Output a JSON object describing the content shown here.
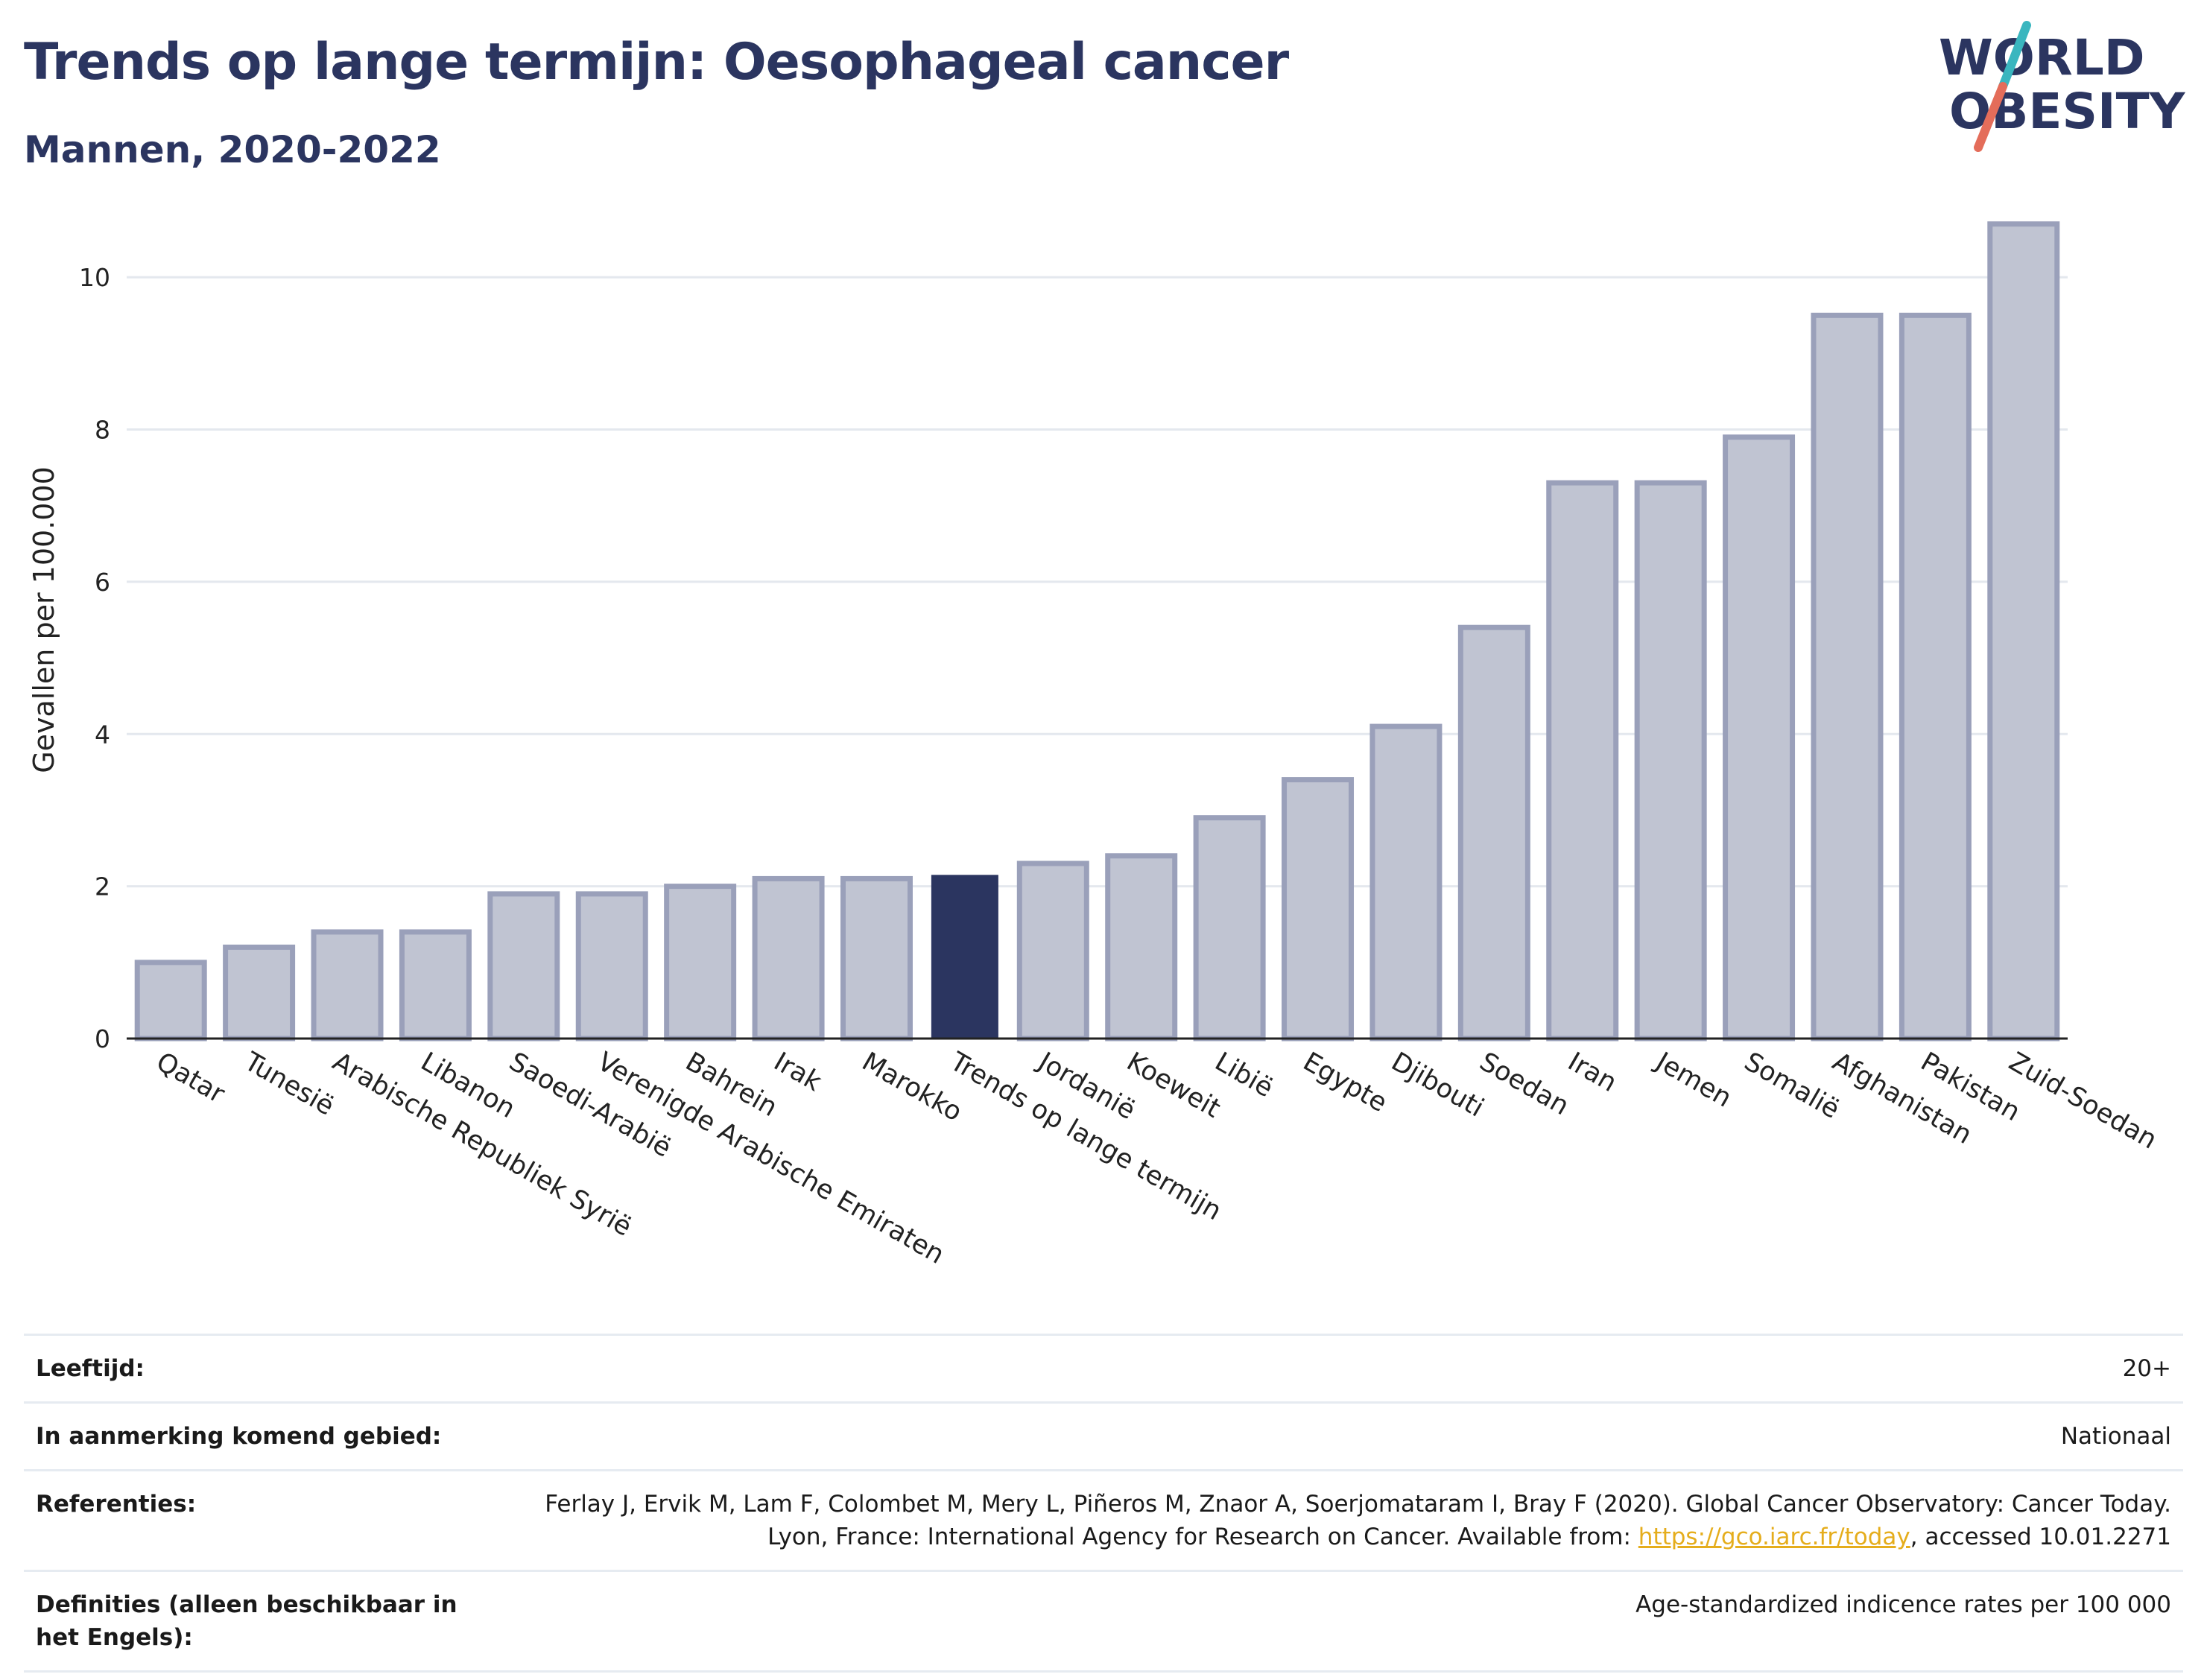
{
  "header": {
    "title": "Trends op lange termijn: Oesophageal cancer",
    "subtitle": "Mannen, 2020-2022"
  },
  "logo": {
    "line1": "WORLD",
    "line2": "OBESITY",
    "colors": {
      "text": "#2b3560",
      "slash_teal": "#3ab6bf",
      "slash_red": "#e46d5a"
    }
  },
  "chart_data": {
    "type": "bar",
    "ylabel": "Gevallen per 100.000",
    "ylim": [
      0,
      11
    ],
    "yticks": [
      0,
      2,
      4,
      6,
      8,
      10
    ],
    "grid": true,
    "categories": [
      "Qatar",
      "Tunesië",
      "Arabische Republiek Syrië",
      "Libanon",
      "Saoedi-Arabië",
      "Verenigde Arabische Emiraten",
      "Bahrein",
      "Irak",
      "Marokko",
      "Trends op lange termijn",
      "Jordanië",
      "Koeweit",
      "Libië",
      "Egypte",
      "Djibouti",
      "Soedan",
      "Iran",
      "Jemen",
      "Somalië",
      "Afghanistan",
      "Pakistan",
      "Zuid-Soedan"
    ],
    "values": [
      1.0,
      1.2,
      1.4,
      1.4,
      1.9,
      1.9,
      2.0,
      2.1,
      2.1,
      2.15,
      2.3,
      2.4,
      2.9,
      3.4,
      4.1,
      5.4,
      7.3,
      7.3,
      7.9,
      9.5,
      9.5,
      10.7
    ],
    "highlight": "Trends op lange termijn",
    "colors": {
      "bar": "#c0c4d2",
      "bar_border": "#9aa0ba",
      "highlight": "#2b3560"
    }
  },
  "info_table": [
    {
      "label": "Leeftijd:",
      "value": "20+"
    },
    {
      "label": "In aanmerking komend gebied:",
      "value": "Nationaal"
    },
    {
      "label": "Referenties:",
      "value_pre": "Ferlay J, Ervik M, Lam F, Colombet M, Mery L, Piñeros M, Znaor A, Soerjomataram I, Bray F (2020). Global Cancer Observatory: Cancer Today. Lyon, France: International Agency for Research on Cancer. Available from: ",
      "link": "https://gco.iarc.fr/today",
      "value_post": ", accessed 10.01.2271"
    },
    {
      "label": "Definities (alleen beschikbaar in het Engels):",
      "value": "Age-standardized indicence rates per 100 000"
    }
  ]
}
